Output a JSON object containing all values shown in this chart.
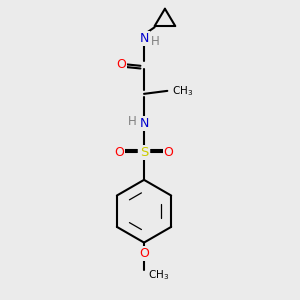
{
  "bg_color": "#ebebeb",
  "atom_colors": {
    "C": "#000000",
    "N": "#0000cd",
    "O": "#ff0000",
    "S": "#cccc00",
    "H": "#808080"
  },
  "bond_color": "#000000",
  "bond_width": 1.5,
  "figsize": [
    3.0,
    3.0
  ],
  "dpi": 100,
  "scale": 10.0
}
